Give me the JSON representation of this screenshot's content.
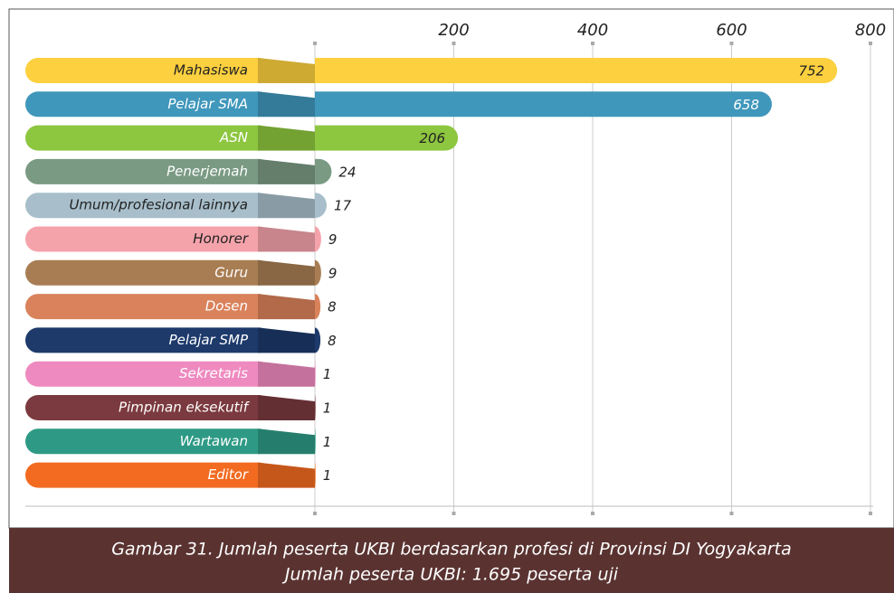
{
  "chart_data": {
    "type": "bar",
    "orientation": "horizontal",
    "categories": [
      "Mahasiswa",
      "Pelajar SMA",
      "ASN",
      "Penerjemah",
      "Umum/profesional lainnya",
      "Honorer",
      "Guru",
      "Dosen",
      "Pelajar SMP",
      "Sekretaris",
      "Pimpinan eksekutif",
      "Wartawan",
      "Editor"
    ],
    "values": [
      752,
      658,
      206,
      24,
      17,
      9,
      9,
      8,
      8,
      1,
      1,
      1,
      1
    ],
    "colors": [
      "#fcd03f",
      "#3f97bb",
      "#8dc63f",
      "#7a9a83",
      "#a8bfcb",
      "#f5a3ab",
      "#a87d53",
      "#d9825b",
      "#1d3a6b",
      "#ef8ac0",
      "#7b3a3f",
      "#2e9a85",
      "#f26b21"
    ],
    "xlim": [
      0,
      800
    ],
    "xticks": [
      200,
      400,
      600,
      800
    ],
    "grid": true,
    "caption": [
      "Gambar 31. Jumlah peserta UKBI berdasarkan profesi di Provinsi DI Yogyakarta",
      "Jumlah peserta UKBI: 1.695 peserta uji"
    ]
  }
}
